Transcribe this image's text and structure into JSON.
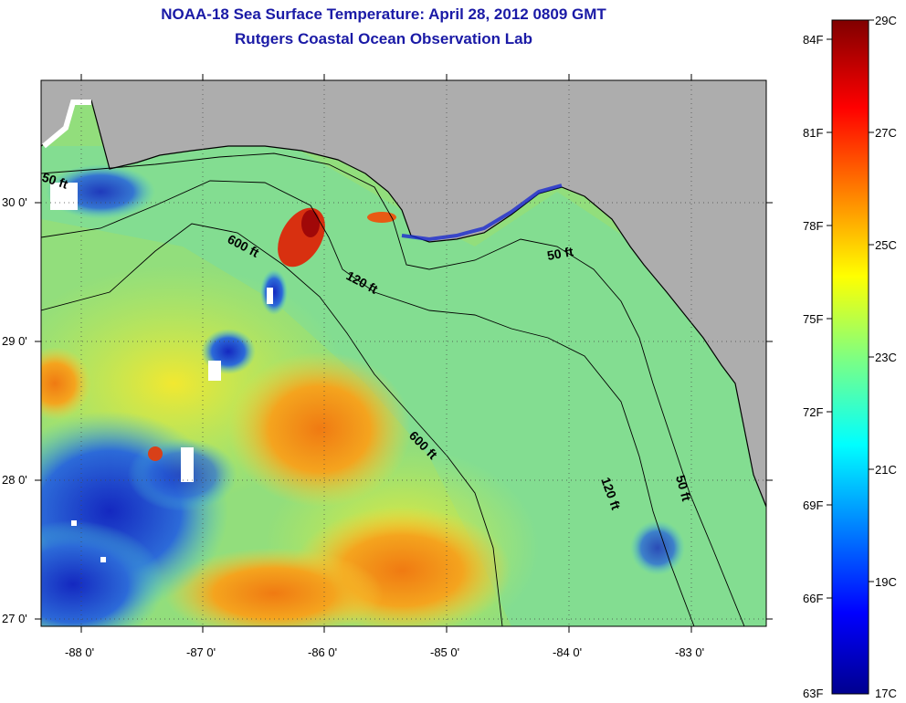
{
  "title": "NOAA-18 Sea Surface Temperature:  April 28, 2012 0809 GMT",
  "subtitle": "Rutgers Coastal Ocean Observation Lab",
  "map": {
    "lon_labels": [
      "-88 0'",
      "-87 0'",
      "-86 0'",
      "-85 0'",
      "-84 0'",
      "-83 0'"
    ],
    "lat_labels": [
      "30 0'",
      "29 0'",
      "28 0'",
      "27 0'"
    ],
    "contour_labels": [
      {
        "key": "c50a",
        "text": "50 ft"
      },
      {
        "key": "c600a",
        "text": "600 ft"
      },
      {
        "key": "c120a",
        "text": "120 ft"
      },
      {
        "key": "c50b",
        "text": "50 ft"
      },
      {
        "key": "c600b",
        "text": "600 ft"
      },
      {
        "key": "c120b",
        "text": "120 ft"
      },
      {
        "key": "c50c",
        "text": "50 ft"
      }
    ],
    "colors": {
      "land": "#adadad",
      "water_base": "#8fe07a",
      "warm": "#f08a1c",
      "cold": "#1828c8",
      "cloud": "#ffffff"
    }
  },
  "colorbar": {
    "fahrenheit": [
      "84F",
      "81F",
      "78F",
      "75F",
      "72F",
      "69F",
      "66F",
      "63F"
    ],
    "celsius": [
      "29C",
      "27C",
      "25C",
      "23C",
      "21C",
      "19C",
      "17C"
    ],
    "range_c": [
      17,
      29
    ],
    "colormap": "jet"
  }
}
